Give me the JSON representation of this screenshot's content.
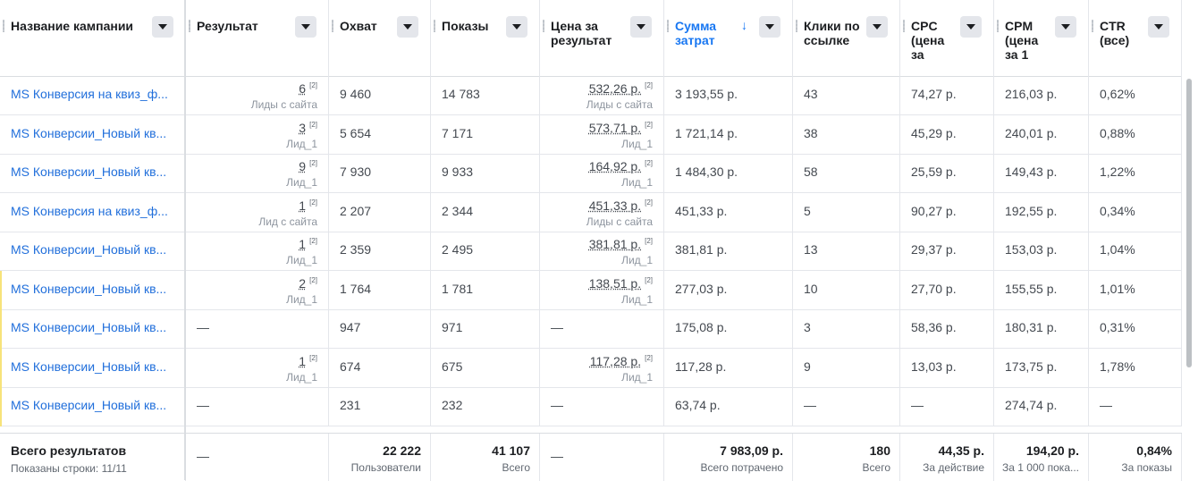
{
  "columns": [
    {
      "label": "Название кампании"
    },
    {
      "label": "Результат"
    },
    {
      "label": "Охват"
    },
    {
      "label": "Показы"
    },
    {
      "label": "Цена за результат"
    },
    {
      "label": "Сумма затрат",
      "sort": "↓"
    },
    {
      "label": "Клики по ссылке"
    },
    {
      "label": "CPC (цена за"
    },
    {
      "label": "CPM (цена за 1"
    },
    {
      "label": "CTR (все)"
    }
  ],
  "rows": [
    {
      "name": "MS Конверсия на квиз_ф...",
      "result": "6",
      "result_sub": "Лиды с сайта",
      "reach": "9 460",
      "impr": "14 783",
      "cpr": "532,26 р.",
      "cpr_sub": "Лиды с сайта",
      "spend": "3 193,55 р.",
      "clicks": "43",
      "cpc": "74,27 р.",
      "cpm": "216,03 р.",
      "ctr": "0,62%"
    },
    {
      "name": "MS Конверсии_Новый кв...",
      "result": "3",
      "result_sub": "Лид_1",
      "reach": "5 654",
      "impr": "7 171",
      "cpr": "573,71 р.",
      "cpr_sub": "Лид_1",
      "spend": "1 721,14 р.",
      "clicks": "38",
      "cpc": "45,29 р.",
      "cpm": "240,01 р.",
      "ctr": "0,88%"
    },
    {
      "name": "MS Конверсии_Новый кв...",
      "result": "9",
      "result_sub": "Лид_1",
      "reach": "7 930",
      "impr": "9 933",
      "cpr": "164,92 р.",
      "cpr_sub": "Лид_1",
      "spend": "1 484,30 р.",
      "clicks": "58",
      "cpc": "25,59 р.",
      "cpm": "149,43 р.",
      "ctr": "1,22%"
    },
    {
      "name": "MS Конверсия на квиз_ф...",
      "result": "1",
      "result_sub": "Лид с сайта",
      "reach": "2 207",
      "impr": "2 344",
      "cpr": "451,33 р.",
      "cpr_sub": "Лиды с сайта",
      "spend": "451,33 р.",
      "clicks": "5",
      "cpc": "90,27 р.",
      "cpm": "192,55 р.",
      "ctr": "0,34%"
    },
    {
      "name": "MS Конверсии_Новый кв...",
      "result": "1",
      "result_sub": "Лид_1",
      "reach": "2 359",
      "impr": "2 495",
      "cpr": "381,81 р.",
      "cpr_sub": "Лид_1",
      "spend": "381,81 р.",
      "clicks": "13",
      "cpc": "29,37 р.",
      "cpm": "153,03 р.",
      "ctr": "1,04%"
    },
    {
      "name": "MS Конверсии_Новый кв...",
      "result": "2",
      "result_sub": "Лид_1",
      "reach": "1 764",
      "impr": "1 781",
      "cpr": "138,51 р.",
      "cpr_sub": "Лид_1",
      "spend": "277,03 р.",
      "clicks": "10",
      "cpc": "27,70 р.",
      "cpm": "155,55 р.",
      "ctr": "1,01%"
    },
    {
      "name": "MS Конверсии_Новый кв...",
      "result": "—",
      "result_sub": "",
      "reach": "947",
      "impr": "971",
      "cpr": "—",
      "cpr_sub": "",
      "spend": "175,08 р.",
      "clicks": "3",
      "cpc": "58,36 р.",
      "cpm": "180,31 р.",
      "ctr": "0,31%"
    },
    {
      "name": "MS Конверсии_Новый кв...",
      "result": "1",
      "result_sub": "Лид_1",
      "reach": "674",
      "impr": "675",
      "cpr": "117,28 р.",
      "cpr_sub": "Лид_1",
      "spend": "117,28 р.",
      "clicks": "9",
      "cpc": "13,03 р.",
      "cpm": "173,75 р.",
      "ctr": "1,78%"
    },
    {
      "name": "MS Конверсии_Новый кв...",
      "result": "—",
      "result_sub": "",
      "reach": "231",
      "impr": "232",
      "cpr": "—",
      "cpr_sub": "",
      "spend": "63,74 р.",
      "clicks": "—",
      "cpc": "—",
      "cpm": "274,74 р.",
      "ctr": "—"
    }
  ],
  "footer": {
    "title": "Всего результатов",
    "subtitle": "Показаны строки: 11/11",
    "result": "—",
    "reach": "22 222",
    "reach_sub": "Пользователи",
    "impr": "41 107",
    "impr_sub": "Всего",
    "cpr": "—",
    "spend": "7 983,09 р.",
    "spend_sub": "Всего потрачено",
    "clicks": "180",
    "clicks_sub": "Всего",
    "cpc": "44,35 р.",
    "cpc_sub": "За действие",
    "cpm": "194,20 р.",
    "cpm_sub": "За 1 000 пока...",
    "ctr": "0,84%",
    "ctr_sub": "За показы"
  },
  "colors": {
    "link": "#216fdb",
    "sorted": "#1877f2"
  },
  "icons": {
    "dropdown": "caret-down-icon",
    "sort": "arrow-down-icon",
    "info": "info-superscript-icon"
  }
}
